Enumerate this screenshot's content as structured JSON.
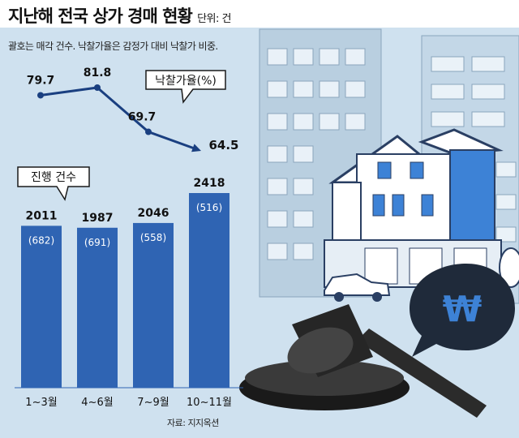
{
  "header": {
    "title": "지난해 전국 상가 경매 현황",
    "unit": "단위: 건",
    "subtitle": "괄호는 매각 건수. 낙찰가율은 감정가 대비 낙찰가 비중.",
    "source": "자료: 지지옥션"
  },
  "colors": {
    "bar": "#2f64b3",
    "line": "#1a3f80",
    "background": "#cfe1ef",
    "text": "#111111"
  },
  "chart_data": {
    "type": "bar",
    "categories": [
      "1~3월",
      "4~6월",
      "7~9월",
      "10~11월"
    ],
    "series": [
      {
        "name": "진행 건수",
        "type": "bar",
        "values": [
          2011,
          1987,
          2046,
          2418
        ]
      },
      {
        "name": "매각 건수",
        "type": "bar-inner-label",
        "values": [
          682,
          691,
          558,
          516
        ]
      },
      {
        "name": "낙찰가율(%)",
        "type": "line",
        "values": [
          79.7,
          81.8,
          69.7,
          64.5
        ]
      }
    ],
    "bar_value_labels": [
      "2011",
      "1987",
      "2046",
      "2418"
    ],
    "inner_value_labels": [
      "(682)",
      "(691)",
      "(558)",
      "(516)"
    ],
    "line_value_labels": [
      "79.7",
      "81.8",
      "69.7",
      "64.5"
    ],
    "legend": {
      "line": "낙찰가율(%)",
      "bar": "진행 건수"
    },
    "grid": false
  },
  "illustration": {
    "currency_symbol": "₩"
  }
}
